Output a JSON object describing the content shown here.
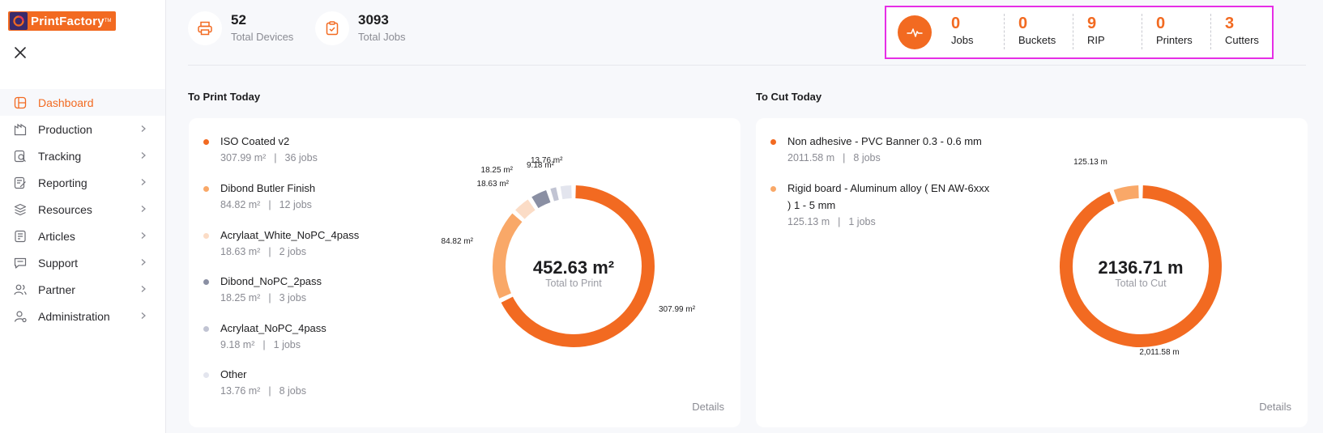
{
  "brand": {
    "name": "PrintFactory",
    "tm": "TM"
  },
  "sidebar": {
    "items": [
      {
        "label": "Dashboard",
        "icon": "dashboard-icon",
        "active": true
      },
      {
        "label": "Production",
        "icon": "production-icon"
      },
      {
        "label": "Tracking",
        "icon": "tracking-icon"
      },
      {
        "label": "Reporting",
        "icon": "reporting-icon"
      },
      {
        "label": "Resources",
        "icon": "resources-icon"
      },
      {
        "label": "Articles",
        "icon": "articles-icon"
      },
      {
        "label": "Support",
        "icon": "support-icon"
      },
      {
        "label": "Partner",
        "icon": "partner-icon"
      },
      {
        "label": "Administration",
        "icon": "administration-icon"
      }
    ]
  },
  "stats": {
    "devices": {
      "value": "52",
      "label": "Total Devices"
    },
    "jobs": {
      "value": "3093",
      "label": "Total Jobs"
    }
  },
  "activity": {
    "items": [
      {
        "value": "0",
        "label": "Jobs"
      },
      {
        "value": "0",
        "label": "Buckets"
      },
      {
        "value": "9",
        "label": "RIP"
      },
      {
        "value": "0",
        "label": "Printers"
      },
      {
        "value": "3",
        "label": "Cutters"
      }
    ]
  },
  "print": {
    "title": "To Print Today",
    "center_value": "452.63 m²",
    "center_label": "Total to Print",
    "details": "Details",
    "legend": [
      {
        "name": "ISO Coated v2",
        "amount": "307.99 m²",
        "jobs": "36 jobs",
        "color": "#f26a21"
      },
      {
        "name": "Dibond Butler Finish",
        "amount": "84.82 m²",
        "jobs": "12 jobs",
        "color": "#f9a868"
      },
      {
        "name": "Acrylaat_White_NoPC_4pass",
        "amount": "18.63 m²",
        "jobs": "2 jobs",
        "color": "#fbdcc6"
      },
      {
        "name": "Dibond_NoPC_2pass",
        "amount": "18.25 m²",
        "jobs": "3 jobs",
        "color": "#8a8fa3"
      },
      {
        "name": "Acrylaat_NoPC_4pass",
        "amount": "9.18 m²",
        "jobs": "1 jobs",
        "color": "#c1c4d3"
      },
      {
        "name": "Other",
        "amount": "13.76 m²",
        "jobs": "8 jobs",
        "color": "#e3e5ee"
      }
    ]
  },
  "cut": {
    "title": "To Cut Today",
    "center_value": "2136.71 m",
    "center_label": "Total to Cut",
    "details": "Details",
    "legend": [
      {
        "name": "Non adhesive - PVC Banner 0.3 - 0.6 mm",
        "amount": "2011.58 m",
        "jobs": "8 jobs",
        "color": "#f26a21"
      },
      {
        "name_line1": "Rigid board - Aluminum alloy ( EN AW-6xxx",
        "name_line2": ") 1 - 5 mm",
        "amount": "125.13 m",
        "jobs": "1 jobs",
        "color": "#f9a868"
      }
    ]
  },
  "chart_data": [
    {
      "type": "pie",
      "title": "To Print Today",
      "categories": [
        "ISO Coated v2",
        "Dibond Butler Finish",
        "Acrylaat_White_NoPC_4pass",
        "Dibond_NoPC_2pass",
        "Acrylaat_NoPC_4pass",
        "Other"
      ],
      "values": [
        307.99,
        84.82,
        18.63,
        18.25,
        9.18,
        13.76
      ],
      "data_labels": [
        "307.99 m²",
        "84.82 m²",
        "18.63 m²",
        "18.25 m²",
        "9.18 m²",
        "13.76 m²"
      ],
      "colors": [
        "#f26a21",
        "#f9a868",
        "#fbdcc6",
        "#8a8fa3",
        "#c1c4d3",
        "#e3e5ee"
      ],
      "center_text": "452.63 m²"
    },
    {
      "type": "pie",
      "title": "To Cut Today",
      "categories": [
        "Non adhesive - PVC Banner 0.3 - 0.6 mm",
        "Rigid board - Aluminum alloy ( EN AW-6xxx ) 1 - 5 mm"
      ],
      "values": [
        2011.58,
        125.13
      ],
      "data_labels": [
        "2,011.58 m",
        "125.13 m"
      ],
      "colors": [
        "#f26a21",
        "#f9a868"
      ],
      "center_text": "2136.71 m"
    }
  ]
}
